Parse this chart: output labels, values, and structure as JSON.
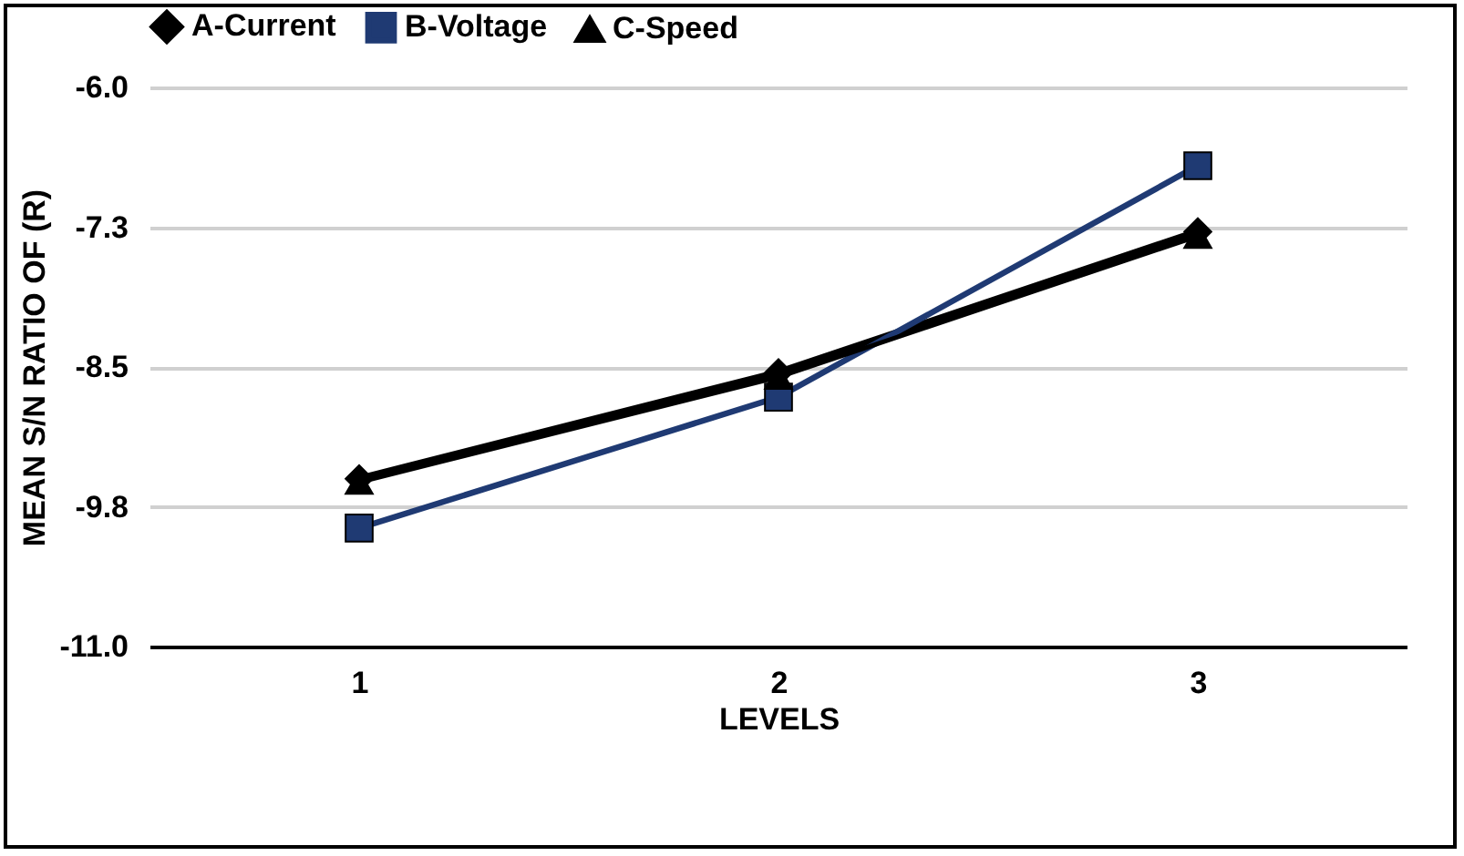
{
  "chart_data": {
    "type": "line",
    "xlabel": "LEVELS",
    "ylabel": "MEAN S/N RATIO OF (R)",
    "categories": [
      "1",
      "2",
      "3"
    ],
    "series": [
      {
        "name": "A-Current",
        "color": "#000000",
        "marker": "diamond",
        "values": [
          -9.5,
          -8.55,
          -7.29
        ]
      },
      {
        "name": "B-Voltage",
        "color": "#1f3a73",
        "marker": "square",
        "values": [
          -9.94,
          -8.77,
          -6.7
        ]
      },
      {
        "name": "C-Speed",
        "color": "#000000",
        "marker": "triangle",
        "values": [
          -9.53,
          -8.59,
          -7.33
        ]
      }
    ],
    "ylim": [
      -11,
      -6
    ],
    "yticks": [
      {
        "value": -11,
        "label": "-11.0"
      },
      {
        "value": -9.75,
        "label": "-9.8"
      },
      {
        "value": -8.5,
        "label": "-8.5"
      },
      {
        "value": -7.25,
        "label": "-7.3"
      },
      {
        "value": -6,
        "label": "-6.0"
      }
    ],
    "grid": "y",
    "legend": "top"
  }
}
